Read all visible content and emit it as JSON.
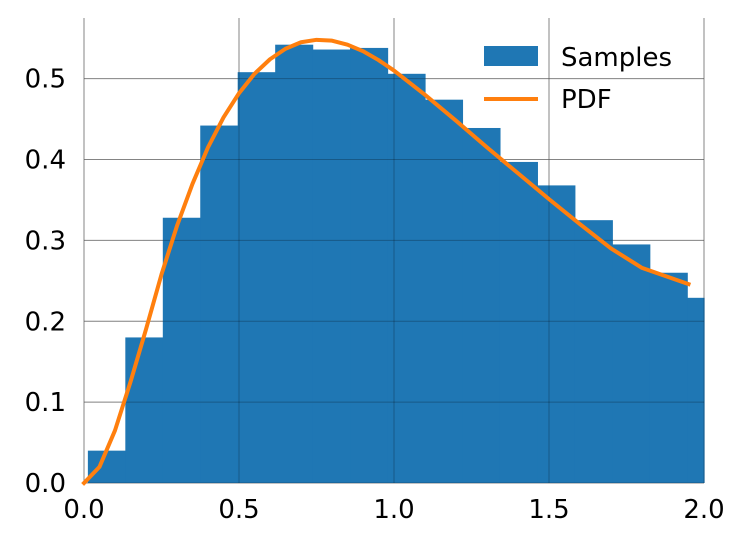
{
  "chart_data": {
    "type": "bar",
    "title": "",
    "xlabel": "",
    "ylabel": "",
    "xlim": [
      0.0,
      2.0
    ],
    "ylim": [
      0.0,
      0.575
    ],
    "grid": true,
    "legend_position": "top-right",
    "x_ticks": [
      "0.0",
      "0.5",
      "1.0",
      "1.5",
      "2.0"
    ],
    "y_ticks": [
      "0.0",
      "0.1",
      "0.2",
      "0.3",
      "0.4",
      "0.5"
    ],
    "histogram": {
      "name": "Samples",
      "color": "#1f77b4",
      "bin_edges": [
        0.0125,
        0.1333,
        0.2542,
        0.375,
        0.4958,
        0.6167,
        0.7375,
        0.8583,
        0.9792,
        1.1,
        1.2208,
        1.3417,
        1.4625,
        1.5833,
        1.7042,
        1.825,
        1.9458,
        2.0
      ],
      "values": [
        0.04,
        0.18,
        0.328,
        0.442,
        0.508,
        0.542,
        0.536,
        0.538,
        0.506,
        0.474,
        0.439,
        0.397,
        0.368,
        0.325,
        0.295,
        0.26,
        0.229
      ]
    },
    "line": {
      "name": "PDF",
      "color": "#ff7f0e",
      "x": [
        0.0,
        0.05,
        0.1,
        0.15,
        0.2,
        0.25,
        0.3,
        0.35,
        0.4,
        0.45,
        0.5,
        0.55,
        0.6,
        0.65,
        0.7,
        0.75,
        0.8,
        0.85,
        0.9,
        0.95,
        1.0,
        1.1,
        1.2,
        1.3,
        1.4,
        1.5,
        1.6,
        1.7,
        1.8,
        1.95
      ],
      "y": [
        0.0,
        0.02,
        0.065,
        0.125,
        0.19,
        0.258,
        0.318,
        0.37,
        0.415,
        0.452,
        0.482,
        0.506,
        0.524,
        0.537,
        0.545,
        0.548,
        0.547,
        0.542,
        0.534,
        0.523,
        0.51,
        0.48,
        0.448,
        0.415,
        0.383,
        0.351,
        0.32,
        0.29,
        0.266,
        0.246
      ]
    }
  }
}
